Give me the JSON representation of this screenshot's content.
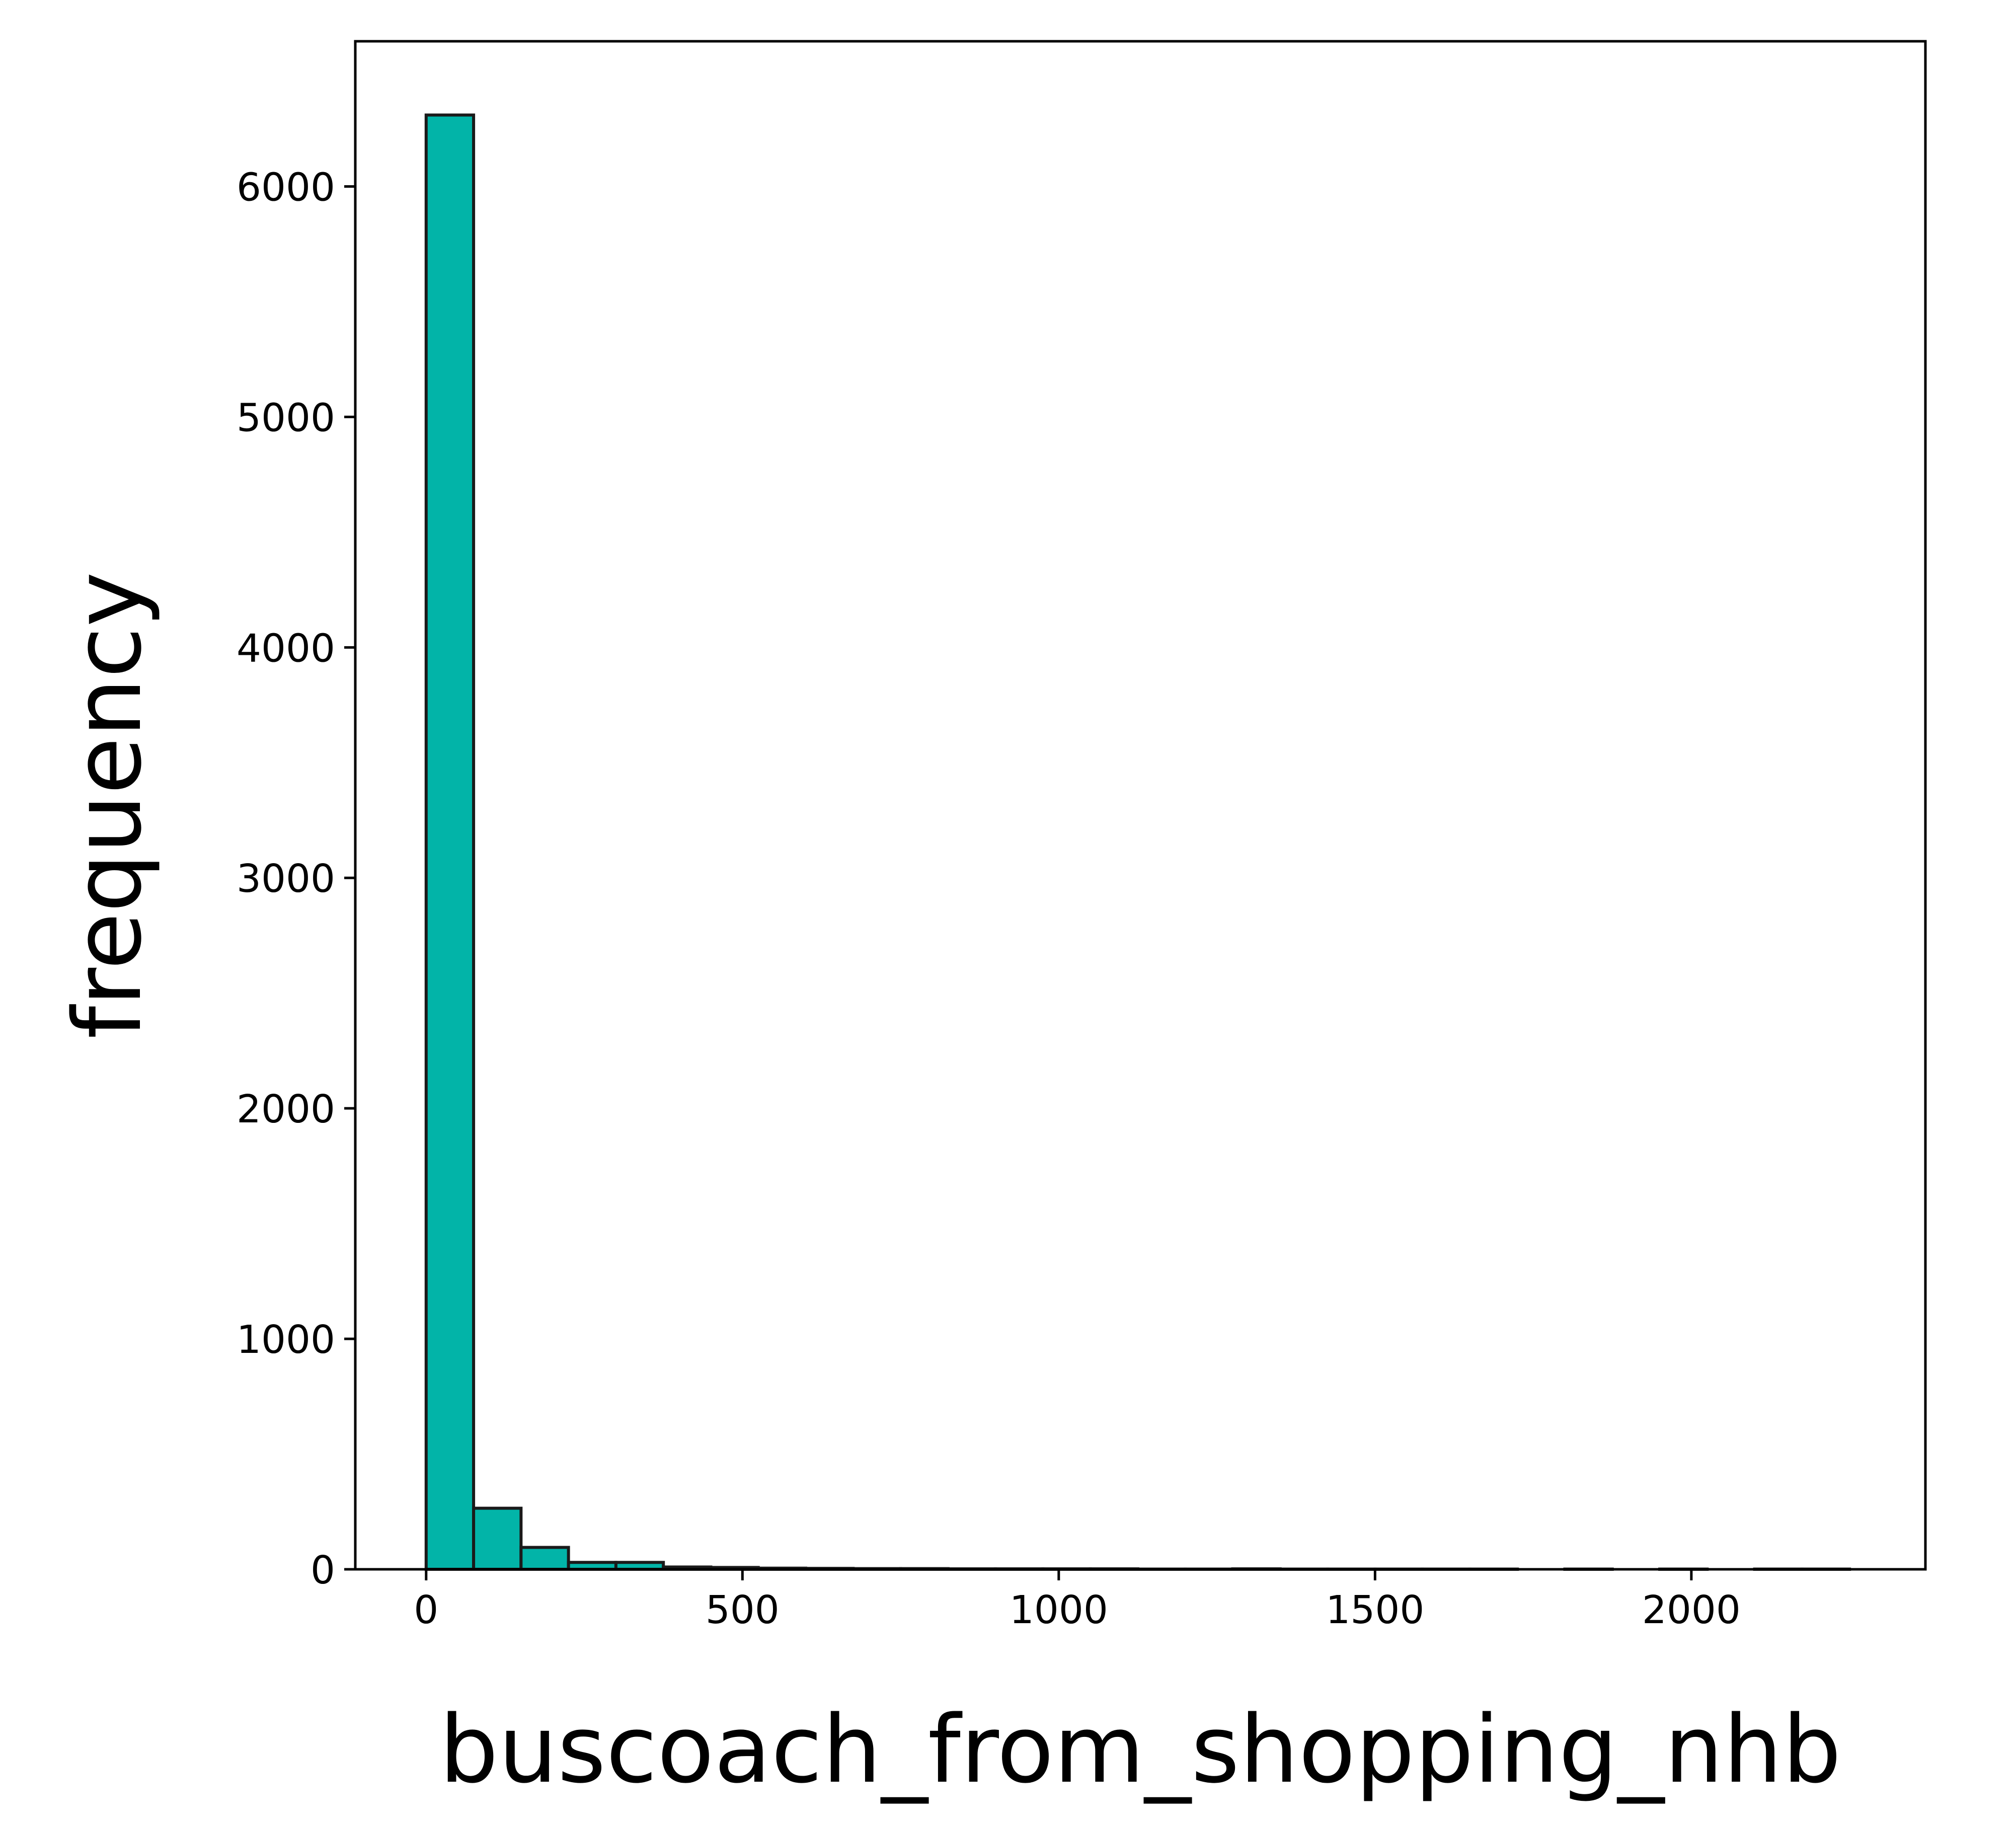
{
  "chart_data": {
    "type": "bar",
    "xlabel": "buscoach_from_shopping_nhb",
    "ylabel": "frequency",
    "bar_color": "#02b4a8",
    "edge_color": "#1a1a1a",
    "xlim": [
      -112,
      2370
    ],
    "ylim": [
      0,
      6630
    ],
    "x_ticks": [
      {
        "value": 0,
        "label": "0"
      },
      {
        "value": 500,
        "label": "500"
      },
      {
        "value": 1000,
        "label": "1000"
      },
      {
        "value": 1500,
        "label": "1500"
      },
      {
        "value": 2000,
        "label": "2000"
      }
    ],
    "y_ticks": [
      {
        "value": 0,
        "label": "0"
      },
      {
        "value": 1000,
        "label": "1000"
      },
      {
        "value": 2000,
        "label": "2000"
      },
      {
        "value": 3000,
        "label": "3000"
      },
      {
        "value": 4000,
        "label": "4000"
      },
      {
        "value": 5000,
        "label": "5000"
      },
      {
        "value": 6000,
        "label": "6000"
      }
    ],
    "bin_width": 75,
    "bins": [
      {
        "x0": 0,
        "x1": 75,
        "count": 6310
      },
      {
        "x0": 75,
        "x1": 150,
        "count": 265
      },
      {
        "x0": 150,
        "x1": 225,
        "count": 95
      },
      {
        "x0": 225,
        "x1": 300,
        "count": 30
      },
      {
        "x0": 300,
        "x1": 375,
        "count": 30
      },
      {
        "x0": 375,
        "x1": 450,
        "count": 10
      },
      {
        "x0": 450,
        "x1": 525,
        "count": 8
      },
      {
        "x0": 525,
        "x1": 600,
        "count": 5
      },
      {
        "x0": 600,
        "x1": 675,
        "count": 4
      },
      {
        "x0": 675,
        "x1": 750,
        "count": 3
      },
      {
        "x0": 750,
        "x1": 825,
        "count": 3
      },
      {
        "x0": 825,
        "x1": 900,
        "count": 2
      },
      {
        "x0": 900,
        "x1": 975,
        "count": 2
      },
      {
        "x0": 975,
        "x1": 1050,
        "count": 2
      },
      {
        "x0": 1050,
        "x1": 1125,
        "count": 2
      },
      {
        "x0": 1125,
        "x1": 1200,
        "count": 1
      },
      {
        "x0": 1200,
        "x1": 1275,
        "count": 1
      },
      {
        "x0": 1275,
        "x1": 1350,
        "count": 2
      },
      {
        "x0": 1350,
        "x1": 1425,
        "count": 1
      },
      {
        "x0": 1425,
        "x1": 1500,
        "count": 1
      },
      {
        "x0": 1500,
        "x1": 1575,
        "count": 1
      },
      {
        "x0": 1575,
        "x1": 1650,
        "count": 1
      },
      {
        "x0": 1650,
        "x1": 1725,
        "count": 1
      },
      {
        "x0": 1725,
        "x1": 1800,
        "count": 0
      },
      {
        "x0": 1800,
        "x1": 1875,
        "count": 1
      },
      {
        "x0": 1875,
        "x1": 1950,
        "count": 0
      },
      {
        "x0": 1950,
        "x1": 2025,
        "count": 1
      },
      {
        "x0": 2025,
        "x1": 2100,
        "count": 0
      },
      {
        "x0": 2100,
        "x1": 2175,
        "count": 1
      },
      {
        "x0": 2175,
        "x1": 2250,
        "count": 1
      }
    ],
    "grid": false,
    "legend": "none"
  }
}
